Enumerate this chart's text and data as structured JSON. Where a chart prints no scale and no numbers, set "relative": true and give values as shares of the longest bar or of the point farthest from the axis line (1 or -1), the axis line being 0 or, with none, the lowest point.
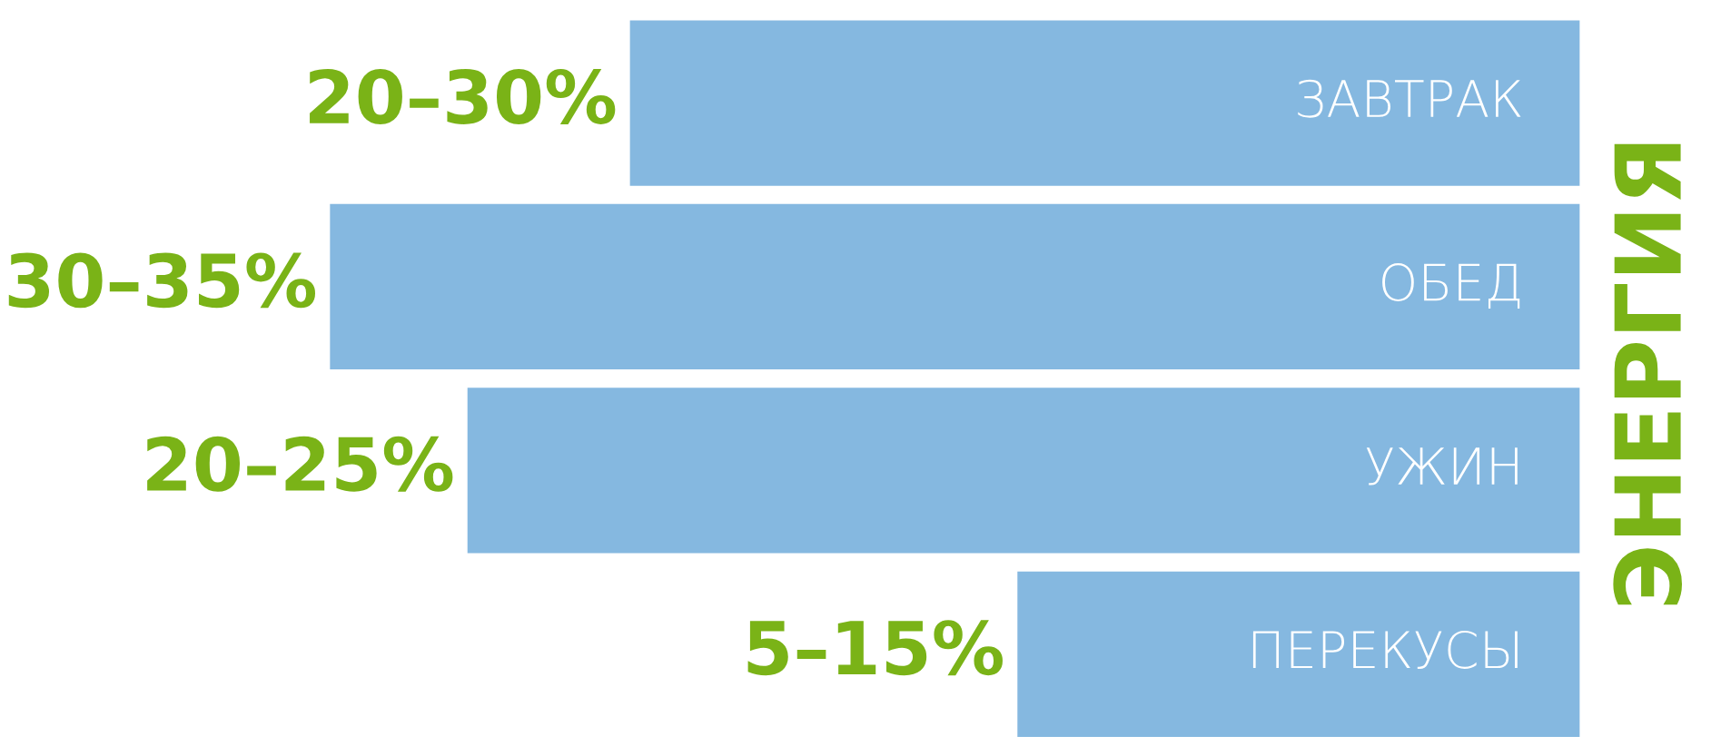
{
  "chart_data": {
    "type": "bar",
    "orientation": "horizontal",
    "relative": true,
    "title": "ЭНЕРГИЯ",
    "categories": [
      "ЗАВТРАК",
      "ОБЕД",
      "УЖИН",
      "ПЕРЕКУСЫ"
    ],
    "values": [
      0.76,
      1,
      0.89,
      0.45
    ],
    "annotations": [
      "20–30%",
      "30–35%",
      "20–25%",
      "5–15%"
    ],
    "color": "#85b8e0"
  }
}
